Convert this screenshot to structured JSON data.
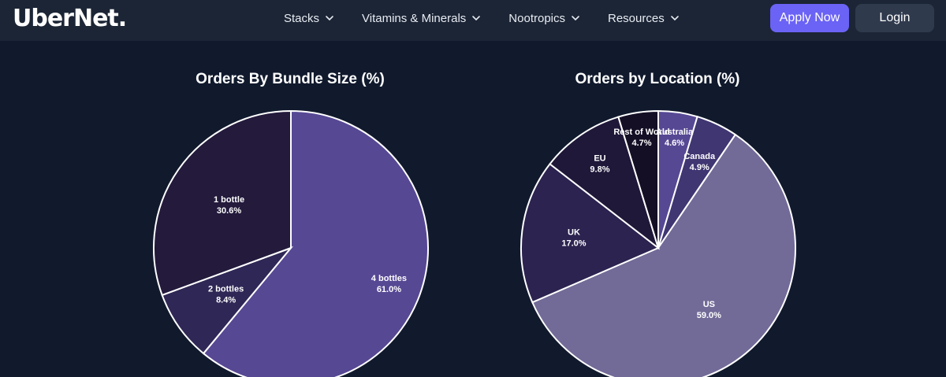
{
  "nav": {
    "logo": "UberNet.",
    "menu": [
      {
        "label": "Stacks",
        "icon": "chevron-down-icon"
      },
      {
        "label": "Vitamins & Minerals",
        "icon": "chevron-down-icon"
      },
      {
        "label": "Nootropics",
        "icon": "chevron-down-icon"
      },
      {
        "label": "Resources",
        "icon": "chevron-down-icon"
      }
    ],
    "apply_label": "Apply Now",
    "login_label": "Login"
  },
  "colors": {
    "background": "#111a2d",
    "navbar": "#1b2535",
    "apply_button": "#6b63f5",
    "login_button": "#2f3a4d"
  },
  "chart_data": [
    {
      "type": "pie",
      "title": "Orders By Bundle Size (%)",
      "categories": [
        "4 bottles",
        "2 bottles",
        "1 bottle"
      ],
      "values": [
        61.0,
        8.4,
        30.6
      ],
      "value_labels": [
        "61.0%",
        "8.4%",
        "30.6%"
      ],
      "colors": [
        "#574894",
        "#2f2755",
        "#231a3c"
      ]
    },
    {
      "type": "pie",
      "title": "Orders by Location (%)",
      "categories": [
        "Australia",
        "Canada",
        "US",
        "UK",
        "EU",
        "Rest of World"
      ],
      "values": [
        4.6,
        4.9,
        59.0,
        17.0,
        9.8,
        4.7
      ],
      "value_labels": [
        "4.6%",
        "4.9%",
        "59.0%",
        "17.0%",
        "9.8%",
        "4.7%"
      ],
      "colors": [
        "#574894",
        "#3f3672",
        "#726b98",
        "#2c2350",
        "#1f1839",
        "#150f26"
      ]
    }
  ]
}
